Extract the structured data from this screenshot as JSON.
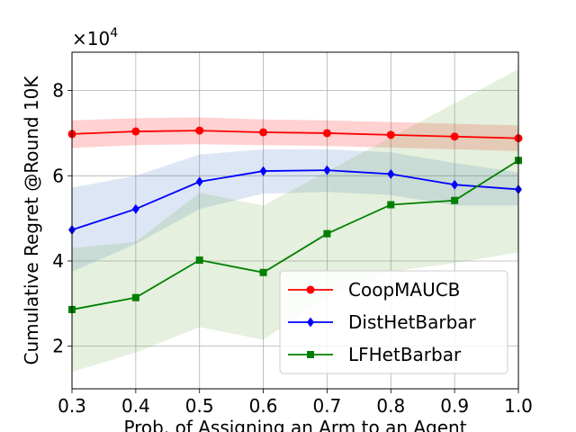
{
  "chart_data": {
    "type": "line",
    "title": "",
    "xlabel": "Prob. of Assigning an Arm to an Agent",
    "ylabel": "Cumulative Regret @Round 10K",
    "scale_label": "×10",
    "scale_exponent": "4",
    "x": [
      0.3,
      0.4,
      0.5,
      0.6,
      0.7,
      0.8,
      0.9,
      1.0
    ],
    "xlim": [
      0.3,
      1.0
    ],
    "ylim": [
      1.0,
      8.9
    ],
    "xticks": [
      "0.3",
      "0.4",
      "0.5",
      "0.6",
      "0.7",
      "0.8",
      "0.9",
      "1.0"
    ],
    "yticks": [
      {
        "value": 2,
        "label": "2"
      },
      {
        "value": 4,
        "label": "4"
      },
      {
        "value": 6,
        "label": "6"
      },
      {
        "value": 8,
        "label": "8"
      }
    ],
    "grid": true,
    "legend_position": "lower-right",
    "series": [
      {
        "name": "CoopMAUCB",
        "color": "#ff0000",
        "band_color": "#ff0000",
        "marker": "circle",
        "values": [
          6.98,
          7.04,
          7.06,
          7.02,
          7.0,
          6.96,
          6.92,
          6.88
        ],
        "lower": [
          6.65,
          6.72,
          6.74,
          6.72,
          6.7,
          6.66,
          6.62,
          6.58
        ],
        "upper": [
          7.3,
          7.35,
          7.37,
          7.32,
          7.3,
          7.26,
          7.22,
          7.18
        ]
      },
      {
        "name": "DistHetBarbar",
        "color": "#0000ff",
        "band_color": "#4472c4",
        "marker": "diamond",
        "values": [
          4.73,
          5.22,
          5.86,
          6.11,
          6.13,
          6.04,
          5.79,
          5.68
        ],
        "lower": [
          3.75,
          4.4,
          5.22,
          5.58,
          5.62,
          5.55,
          5.3,
          5.3
        ],
        "upper": [
          5.72,
          6.0,
          6.5,
          6.62,
          6.62,
          6.55,
          6.3,
          6.08
        ]
      },
      {
        "name": "LFHetBarbar",
        "color": "#008000",
        "band_color": "#70ad47",
        "marker": "square",
        "values": [
          2.86,
          3.14,
          4.02,
          3.73,
          4.64,
          5.32,
          5.42,
          6.36
        ],
        "lower": [
          1.4,
          1.85,
          2.45,
          2.15,
          3.15,
          3.75,
          3.95,
          4.2
        ],
        "upper": [
          4.3,
          4.45,
          5.6,
          5.3,
          6.1,
          6.9,
          7.7,
          8.5
        ]
      }
    ]
  }
}
